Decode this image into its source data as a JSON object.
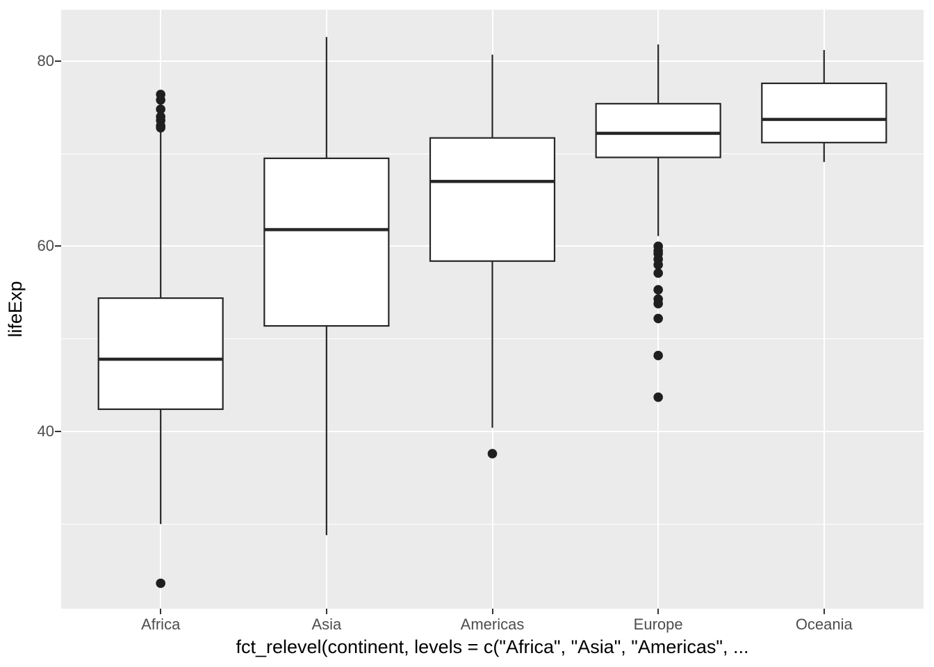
{
  "chart_data": {
    "type": "boxplot",
    "title": "",
    "xlabel": "fct_relevel(continent, levels = c(\"Africa\", \"Asia\", \"Americas\", ...",
    "ylabel": "lifeExp",
    "categories": [
      "Africa",
      "Asia",
      "Americas",
      "Europe",
      "Oceania"
    ],
    "ylim": [
      20.86,
      85.55
    ],
    "yticks_major": [
      40,
      60,
      80
    ],
    "ytick_labels": [
      "40",
      "60",
      "80"
    ],
    "yticks_minor": [
      30,
      50,
      70
    ],
    "grid": "on",
    "legend_position": "none",
    "series": [
      {
        "name": "Africa",
        "whisker_low": 30.0,
        "q1": 42.4,
        "median": 47.8,
        "q3": 54.4,
        "whisker_high": 72.3,
        "outliers": [
          76.4,
          75.8,
          74.8,
          74.0,
          73.6,
          73.0,
          72.8,
          23.6
        ]
      },
      {
        "name": "Asia",
        "whisker_low": 28.8,
        "q1": 51.4,
        "median": 61.8,
        "q3": 69.5,
        "whisker_high": 82.6,
        "outliers": []
      },
      {
        "name": "Americas",
        "whisker_low": 40.4,
        "q1": 58.4,
        "median": 67.0,
        "q3": 71.7,
        "whisker_high": 80.7,
        "outliers": [
          37.6
        ]
      },
      {
        "name": "Europe",
        "whisker_low": 61.1,
        "q1": 69.6,
        "median": 72.2,
        "q3": 75.4,
        "whisker_high": 81.8,
        "outliers": [
          60.0,
          59.5,
          59.2,
          58.6,
          58.0,
          57.1,
          55.3,
          54.3,
          53.8,
          52.2,
          48.2,
          43.7
        ]
      },
      {
        "name": "Oceania",
        "whisker_low": 69.1,
        "q1": 71.2,
        "median": 73.7,
        "q3": 77.6,
        "whisker_high": 81.2,
        "outliers": []
      }
    ],
    "colors": {
      "panel_bg": "#EBEBEB",
      "grid": "#FFFFFF",
      "box_fill": "#FFFFFF",
      "box_stroke": "#262626",
      "outlier_fill": "#1F1F1F",
      "tick_label": "#4D4D4D",
      "axis_title": "#000000",
      "tick_mark": "#333333"
    }
  }
}
